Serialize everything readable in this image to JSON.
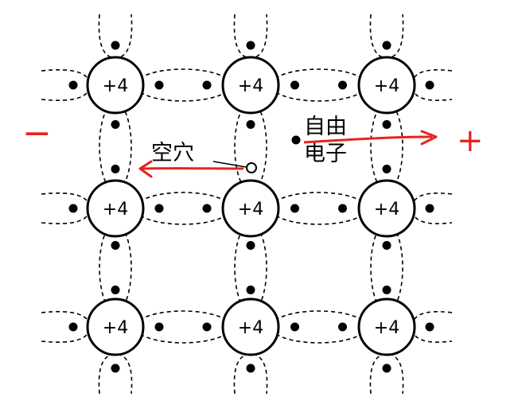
{
  "atoms": {
    "charge_label": "+4",
    "grid": [
      [
        "+4",
        "+4",
        "+4"
      ],
      [
        "+4",
        "+4",
        "+4"
      ],
      [
        "+4",
        "+4",
        "+4"
      ]
    ]
  },
  "labels": {
    "hole": "空穴",
    "free_electron_line1": "自由",
    "free_electron_line2": "电子"
  },
  "annotations": {
    "negative_sign": "−",
    "positive_sign": "+",
    "annotation_color": "#e8231f"
  },
  "colors": {
    "line": "#000000",
    "background": "#ffffff"
  }
}
